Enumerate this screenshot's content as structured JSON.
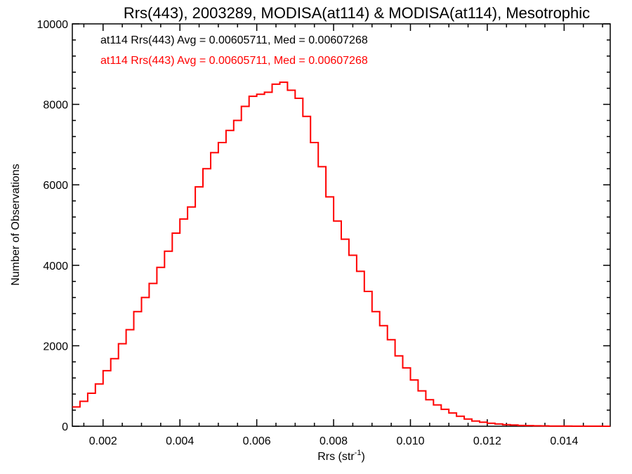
{
  "chart_data": {
    "type": "line",
    "title": "Rrs(443), 2003289, MODISA(at114) & MODISA(at114), Mesotrophic",
    "xlabel_main": "Rrs (str",
    "xlabel_sup": "-1",
    "xlabel_end": ")",
    "ylabel": "Number of Observations",
    "xlim": [
      0.0012,
      0.0152
    ],
    "ylim": [
      0,
      10000
    ],
    "x_ticks": [
      0.002,
      0.004,
      0.006,
      0.008,
      0.01,
      0.012,
      0.014
    ],
    "x_tick_labels": [
      "0.002",
      "0.004",
      "0.006",
      "0.008",
      "0.010",
      "0.012",
      "0.014"
    ],
    "y_ticks": [
      0,
      2000,
      4000,
      6000,
      8000,
      10000
    ],
    "y_tick_labels": [
      "0",
      "2000",
      "4000",
      "6000",
      "8000",
      "10000"
    ],
    "grid": false,
    "annotations": [
      {
        "text": "at114 Rrs(443) Avg = 0.00605711, Med = 0.00607268",
        "color": "#000000"
      },
      {
        "text": "at114 Rrs(443) Avg = 0.00605711, Med = 0.00607268",
        "color": "#ff0000"
      }
    ],
    "series": [
      {
        "color": "#ff0000",
        "style": "step",
        "x": [
          0.0012,
          0.0014,
          0.0016,
          0.0018,
          0.002,
          0.0022,
          0.0024,
          0.0026,
          0.0028,
          0.003,
          0.0032,
          0.0034,
          0.0036,
          0.0038,
          0.004,
          0.0042,
          0.0044,
          0.0046,
          0.0048,
          0.005,
          0.0052,
          0.0054,
          0.0056,
          0.0058,
          0.006,
          0.0062,
          0.0064,
          0.0066,
          0.0068,
          0.007,
          0.0072,
          0.0074,
          0.0076,
          0.0078,
          0.008,
          0.0082,
          0.0084,
          0.0086,
          0.0088,
          0.009,
          0.0092,
          0.0094,
          0.0096,
          0.0098,
          0.01,
          0.0102,
          0.0104,
          0.0106,
          0.0108,
          0.011,
          0.0112,
          0.0114,
          0.0116,
          0.0118,
          0.012,
          0.0122,
          0.0124,
          0.0126,
          0.0128,
          0.013,
          0.0132,
          0.0134,
          0.0136,
          0.0138,
          0.014,
          0.0142,
          0.0144,
          0.0146,
          0.0148,
          0.015,
          0.0152
        ],
        "y": [
          480,
          620,
          820,
          1050,
          1380,
          1680,
          2050,
          2400,
          2850,
          3200,
          3550,
          3950,
          4350,
          4800,
          5150,
          5450,
          5950,
          6400,
          6800,
          7050,
          7350,
          7600,
          7950,
          8200,
          8250,
          8300,
          8500,
          8550,
          8350,
          8150,
          7700,
          7050,
          6450,
          5700,
          5100,
          4650,
          4250,
          3850,
          3350,
          2850,
          2500,
          2150,
          1750,
          1450,
          1150,
          880,
          660,
          530,
          420,
          330,
          250,
          180,
          130,
          100,
          75,
          55,
          40,
          30,
          20,
          15,
          10,
          8,
          5,
          4,
          3,
          2,
          2,
          1,
          1,
          0,
          0
        ]
      }
    ]
  }
}
